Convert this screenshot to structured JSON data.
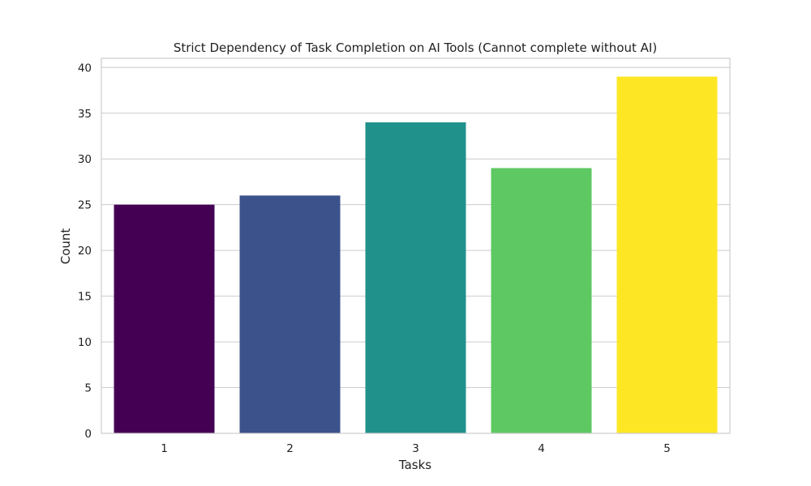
{
  "chart_data": {
    "type": "bar",
    "title": "Strict Dependency of Task Completion on AI Tools (Cannot complete without AI)",
    "xlabel": "Tasks",
    "ylabel": "Count",
    "categories": [
      "1",
      "2",
      "3",
      "4",
      "5"
    ],
    "values": [
      25,
      26,
      34,
      29,
      39
    ],
    "colors": [
      "#440154",
      "#3b528b",
      "#21918c",
      "#5ec962",
      "#fde725"
    ],
    "ylim": [
      0,
      41
    ],
    "yticks": [
      0,
      5,
      10,
      15,
      20,
      25,
      30,
      35,
      40
    ],
    "grid": true,
    "legend": "none"
  }
}
